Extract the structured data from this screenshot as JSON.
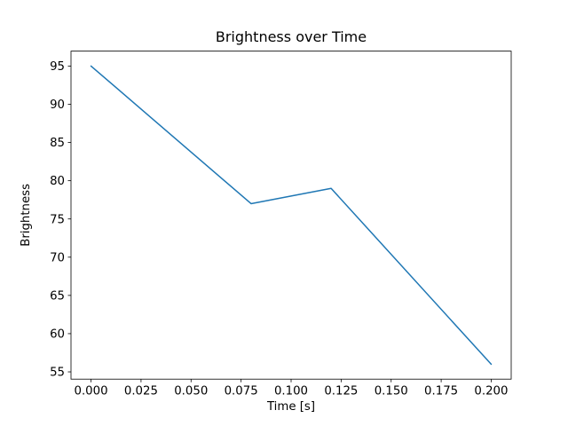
{
  "chart_data": {
    "type": "line",
    "title": "Brightness over Time",
    "xlabel": "Time [s]",
    "ylabel": "Brightness",
    "x": [
      0.0,
      0.08,
      0.12,
      0.2
    ],
    "y": [
      95,
      77,
      79,
      56
    ],
    "xlim": [
      -0.01,
      0.21
    ],
    "ylim": [
      54.05,
      96.95
    ],
    "xticks": [
      0.0,
      0.025,
      0.05,
      0.075,
      0.1,
      0.125,
      0.15,
      0.175,
      0.2
    ],
    "xtick_labels": [
      "0.000",
      "0.025",
      "0.050",
      "0.075",
      "0.100",
      "0.125",
      "0.150",
      "0.175",
      "0.200"
    ],
    "yticks": [
      55,
      60,
      65,
      70,
      75,
      80,
      85,
      90,
      95
    ],
    "ytick_labels": [
      "55",
      "60",
      "65",
      "70",
      "75",
      "80",
      "85",
      "90",
      "95"
    ],
    "line_color": "#1f77b4",
    "axis_color": "#000000",
    "grid": false,
    "legend_position": "none"
  }
}
